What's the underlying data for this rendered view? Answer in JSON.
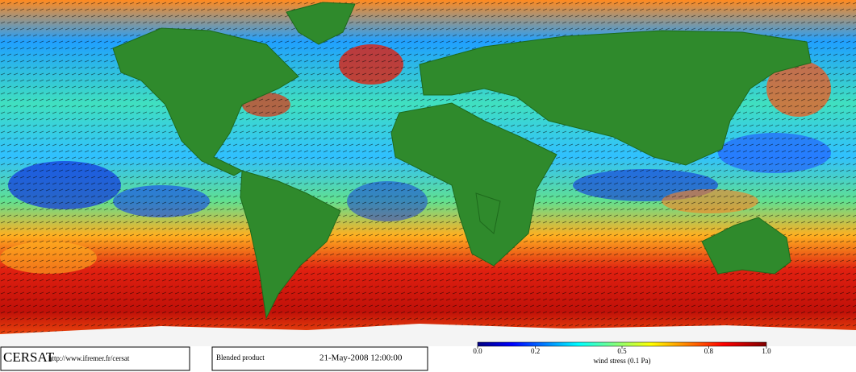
{
  "footer": {
    "logo": "CERSAT",
    "url": "http://www.ifremer.fr/cersat",
    "product": "Blended product",
    "date": "21-May-2008 12:00:00"
  },
  "colorbar": {
    "label": "wind stress (0.1 Pa)",
    "lim": [
      0,
      1
    ],
    "ticks": [
      {
        "value": 0,
        "label": "0.0"
      },
      0.2,
      0.5,
      0.8,
      {
        "value": 1,
        "label": "1.0"
      }
    ]
  }
}
